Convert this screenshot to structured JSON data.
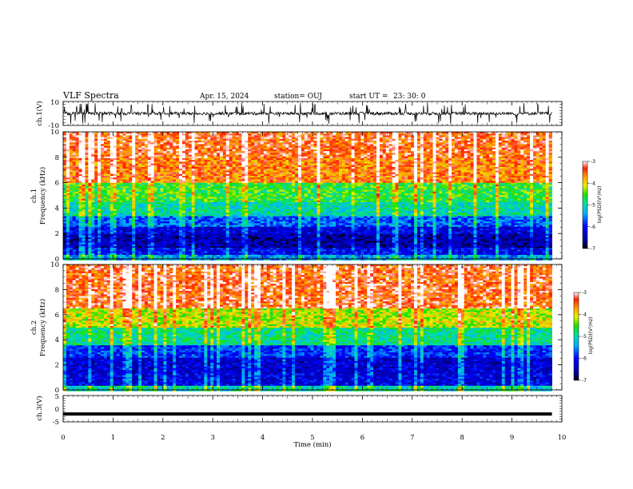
{
  "header": {
    "title": "VLF Spectra",
    "date": "Apr. 15, 2024",
    "station": "station= OUJ",
    "start": "start UT =",
    "time": "23: 30: 0"
  },
  "chart_data": [
    {
      "type": "line",
      "panel": "ch1-waveform",
      "ylabel": "ch.1(V)",
      "yticks": [
        "10",
        "-10"
      ],
      "ylim": [
        -10,
        10
      ],
      "baseline": 0,
      "description_of_data": "noisy waveform centered near 0 V with frequent spikes, approx -3 to +3 V typical, spikes to about +-9 V"
    },
    {
      "type": "heatmap",
      "panel": "ch1-spectrogram",
      "ylabel": [
        "ch.1",
        "Frequency (kHz)"
      ],
      "yticks": [
        "0",
        "2",
        "4",
        "6",
        "8",
        "10"
      ],
      "ylim": [
        0,
        10
      ],
      "colorbar": {
        "label": "log(PSD)(V²/Hz)",
        "ticks": [
          "-3",
          "-4",
          "-5",
          "-6",
          "-7"
        ],
        "range": [
          -7,
          -3
        ]
      },
      "bands_khz_logpsd": [
        {
          "f": [
            0.0,
            0.4
          ],
          "v": -5.4
        },
        {
          "f": [
            0.4,
            1.0
          ],
          "v": -6.1
        },
        {
          "f": [
            1.0,
            2.0
          ],
          "v": -6.5
        },
        {
          "f": [
            2.0,
            2.6
          ],
          "v": -6.2
        },
        {
          "f": [
            2.6,
            3.4
          ],
          "v": -5.7
        },
        {
          "f": [
            3.4,
            4.6
          ],
          "v": -5.0
        },
        {
          "f": [
            4.6,
            6.0
          ],
          "v": -4.6
        },
        {
          "f": [
            6.0,
            8.0
          ],
          "v": -3.6
        },
        {
          "f": [
            8.0,
            10.0
          ],
          "v": -3.4
        }
      ]
    },
    {
      "type": "heatmap",
      "panel": "ch2-spectrogram",
      "ylabel": [
        "ch.2",
        "Frequency (kHz)"
      ],
      "yticks": [
        "0",
        "2",
        "4",
        "6",
        "8",
        "10"
      ],
      "ylim": [
        0,
        10
      ],
      "colorbar": {
        "label": "log(PSD)(V²/Hz)",
        "ticks": [
          "-3",
          "-4",
          "-5",
          "-6",
          "-7"
        ],
        "range": [
          -7,
          -3
        ]
      },
      "bands_khz_logpsd": [
        {
          "f": [
            0.0,
            0.4
          ],
          "v": -5.0
        },
        {
          "f": [
            0.4,
            1.4
          ],
          "v": -6.2
        },
        {
          "f": [
            1.4,
            2.6
          ],
          "v": -6.3
        },
        {
          "f": [
            2.6,
            3.6
          ],
          "v": -5.9
        },
        {
          "f": [
            3.6,
            5.0
          ],
          "v": -4.9
        },
        {
          "f": [
            5.0,
            6.6
          ],
          "v": -4.2
        },
        {
          "f": [
            6.6,
            10.0
          ],
          "v": -3.4
        }
      ]
    },
    {
      "type": "line",
      "panel": "ch3-waveform",
      "ylabel": "ch.3(V)",
      "yticks": [
        "5",
        "0",
        "-5"
      ],
      "ylim": [
        -5,
        5
      ],
      "y": -2,
      "xlabel": "Time (min)",
      "xticks": [
        "0",
        "1",
        "2",
        "3",
        "4",
        "5",
        "6",
        "7",
        "8",
        "9",
        "10"
      ],
      "xlim": [
        0,
        10
      ],
      "data_end_min": 9.8
    }
  ]
}
